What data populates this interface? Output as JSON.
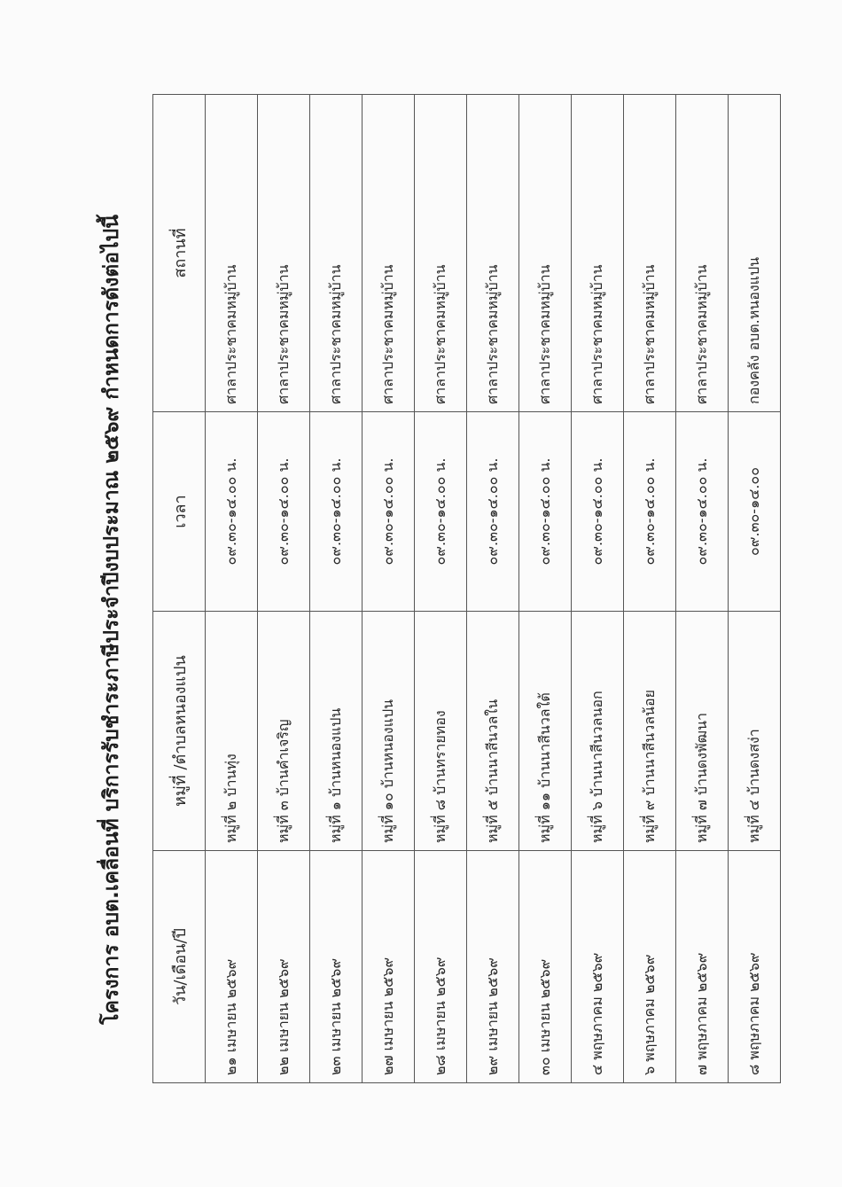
{
  "title": "โครงการ อบต.เคลื่อนที่ บริการรับชำระภาษีประจำปีงบประมาณ ๒๕๖๙  กำหนดการดังต่อไปนี้",
  "headers": [
    "วัน/เดือน/ปี",
    "หมู่ที่ /ตำบลหนองแปน",
    "เวลา",
    "สถานที่"
  ],
  "rows": [
    {
      "date": "๒๑  เมษายน ๒๕๖๙",
      "village": "หมู่ที่ ๒ บ้านทุ่ง",
      "time": "๐๙.๓๐-๑๔.๐๐ น.",
      "place": "ศาลาประชาคมหมู่บ้าน"
    },
    {
      "date": "๒๒  เมษายน ๒๕๖๙",
      "village": "หมู่ที่  ๓ บ้านคำเจริญ",
      "time": "๐๙.๓๐-๑๔.๐๐ น.",
      "place": "ศาลาประชาคมหมู่บ้าน"
    },
    {
      "date": "๒๓  เมษายน ๒๕๖๙",
      "village": "หมู่ที่  ๑ บ้านหนองแปน",
      "time": "๐๙.๓๐-๑๔.๐๐ น.",
      "place": "ศาลาประชาคมหมู่บ้าน"
    },
    {
      "date": "๒๗ เมษายน ๒๕๖๙",
      "village": "หมู่ที่  ๑๐ บ้านหนองแปน",
      "time": "๐๙.๓๐-๑๔.๐๐ น.",
      "place": "ศาลาประชาคมหมู่บ้าน"
    },
    {
      "date": "๒๘ เมษายน ๒๕๖๙",
      "village": "หมู่ที่  ๘ บ้านทรายทอง",
      "time": "๐๙.๓๐-๑๔.๐๐ น.",
      "place": "ศาลาประชาคมหมู่บ้าน"
    },
    {
      "date": "๒๙  เมษายน ๒๕๖๙",
      "village": "หมู่ที่ ๕ บ้านนาสีนวลใน",
      "time": "๐๙.๓๐-๑๔.๐๐ น.",
      "place": "ศาลาประชาคมหมู่บ้าน"
    },
    {
      "date": "๓๐  เมษายน ๒๕๖๙",
      "village": "หมู่ที่  ๑๑ บ้านนาสีนวลใต้",
      "time": "๐๙.๓๐-๑๔.๐๐ น.",
      "place": "ศาลาประชาคมหมู่บ้าน"
    },
    {
      "date": "๔  พฤษภาคม ๒๕๖๙",
      "village": "หมู่ที่  ๖ บ้านนาสีนวลนอก",
      "time": "๐๙.๓๐-๑๔.๐๐ น.",
      "place": "ศาลาประชาคมหมู่บ้าน"
    },
    {
      "date": "๖  พฤษภาคม ๒๕๖๙",
      "village": "หมู่ที่  ๙ บ้านนาสีนวลน้อย",
      "time": "๐๙.๓๐-๑๔.๐๐ น.",
      "place": "ศาลาประชาคมหมู่บ้าน"
    },
    {
      "date": "๗  พฤษภาคม ๒๕๖๙",
      "village": "หมู่ที่  ๗ บ้านดงพัฒนา",
      "time": "๐๙.๓๐-๑๔.๐๐ น.",
      "place": "ศาลาประชาคมหมู่บ้าน"
    },
    {
      "date": "๘  พฤษภาคม ๒๕๖๙",
      "village": "หมู่ที่  ๔ บ้านดงสง่า",
      "time": "๐๙.๓๐-๑๔.๐๐",
      "place": "กองคลัง อบต.หนองแปน"
    }
  ]
}
